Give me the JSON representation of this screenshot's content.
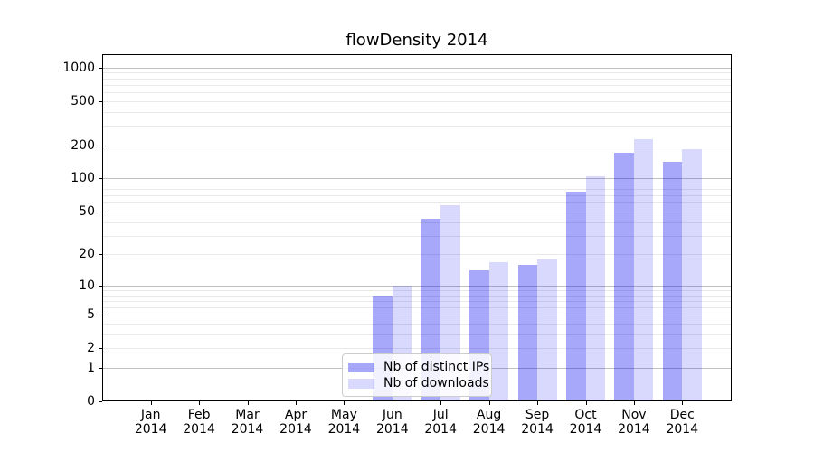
{
  "title": "flowDensity 2014",
  "legend": {
    "items": [
      {
        "label": "Nb of distinct IPs",
        "color": "rgba(0,0,240,0.34)"
      },
      {
        "label": "Nb of downloads",
        "color": "rgba(0,0,240,0.15)"
      }
    ]
  },
  "colors": {
    "bar_distinct_ips": "rgba(0,0,240,0.34)",
    "bar_downloads": "rgba(0,0,240,0.15)",
    "grid_major": "#c0c0c0",
    "grid_minor": "#e9e9e9",
    "axis": "#000000"
  },
  "chart_data": {
    "type": "bar",
    "title": "flowDensity 2014",
    "categories": [
      "Jan 2014",
      "Feb 2014",
      "Mar 2014",
      "Apr 2014",
      "May 2014",
      "Jun 2014",
      "Jul 2014",
      "Aug 2014",
      "Sep 2014",
      "Oct 2014",
      "Nov 2014",
      "Dec 2014"
    ],
    "series": [
      {
        "name": "Nb of distinct IPs",
        "values": [
          0,
          0,
          0,
          0,
          0,
          8,
          43,
          14,
          16,
          76,
          172,
          141
        ]
      },
      {
        "name": "Nb of downloads",
        "values": [
          0,
          0,
          0,
          0,
          0,
          10,
          57,
          17,
          18,
          105,
          225,
          185
        ]
      }
    ],
    "xlabel": "",
    "ylabel": "",
    "yscale": "log10(value+1)",
    "yticks": [
      0,
      1,
      2,
      5,
      10,
      20,
      50,
      100,
      200,
      500,
      1000
    ],
    "ytick_labels": [
      "0",
      "1",
      "2",
      "5",
      "10",
      "20",
      "50",
      "100",
      "200",
      "500",
      "1000"
    ],
    "grid_major_values": [
      1,
      10,
      100,
      1000
    ],
    "grid_minor_values": [
      2,
      3,
      4,
      5,
      6,
      7,
      8,
      9,
      20,
      30,
      40,
      50,
      60,
      70,
      80,
      90,
      200,
      300,
      400,
      500,
      600,
      700,
      800,
      900
    ],
    "ylim": [
      0,
      1320
    ],
    "grid": "horizontal, major and minor",
    "legend_position": "lower center inside plot"
  }
}
